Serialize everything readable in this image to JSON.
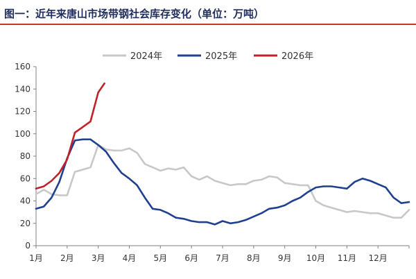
{
  "title": "图一：近年来唐山市场带钢社会库存变化（单位：万吨）",
  "chart_data": {
    "type": "line",
    "title": "图一：近年来唐山市场带钢社会库存变化（单位：万吨）",
    "xlabel": "",
    "ylabel": "",
    "ylim": [
      0,
      160
    ],
    "yticks": [
      0,
      20,
      40,
      60,
      80,
      100,
      120,
      140,
      160
    ],
    "xlim": [
      1,
      13
    ],
    "xticks": [
      "1月",
      "2月",
      "3月",
      "4月",
      "5月",
      "6月",
      "7月",
      "8月",
      "9月",
      "10月",
      "11月",
      "12月"
    ],
    "legend_position": "top",
    "series": [
      {
        "name": "2024年",
        "color": "#c8c8c8",
        "x": [
          1.0,
          1.25,
          1.5,
          1.75,
          2.0,
          2.25,
          2.5,
          2.75,
          3.0,
          3.25,
          3.5,
          3.75,
          4.0,
          4.25,
          4.5,
          4.75,
          5.0,
          5.25,
          5.5,
          5.75,
          6.0,
          6.25,
          6.5,
          6.75,
          7.0,
          7.25,
          7.5,
          7.75,
          8.0,
          8.25,
          8.5,
          8.75,
          9.0,
          9.25,
          9.5,
          9.75,
          10.0,
          10.25,
          10.5,
          10.75,
          11.0,
          11.25,
          11.5,
          11.75,
          12.0,
          12.25,
          12.5,
          12.75,
          13.0
        ],
        "values": [
          46,
          50,
          46,
          45,
          45,
          66,
          68,
          70,
          90,
          86,
          85,
          85,
          87,
          83,
          73,
          70,
          67,
          69,
          68,
          70,
          62,
          59,
          62,
          58,
          56,
          54,
          55,
          55,
          58,
          59,
          62,
          61,
          56,
          55,
          54,
          54,
          40,
          36,
          34,
          32,
          30,
          31,
          30,
          29,
          29,
          27,
          25,
          25,
          32
        ]
      },
      {
        "name": "2025年",
        "color": "#1f3f8f",
        "x": [
          1.0,
          1.25,
          1.5,
          1.75,
          2.0,
          2.25,
          2.5,
          2.75,
          3.0,
          3.25,
          3.5,
          3.75,
          4.0,
          4.25,
          4.5,
          4.75,
          5.0,
          5.25,
          5.5,
          5.75,
          6.0,
          6.25,
          6.5,
          6.75,
          7.0,
          7.25,
          7.5,
          7.75,
          8.0,
          8.25,
          8.5,
          8.75,
          9.0,
          9.25,
          9.5,
          9.75,
          10.0,
          10.25,
          10.5,
          10.75,
          11.0,
          11.25,
          11.5,
          11.75,
          12.0,
          12.25,
          12.5,
          12.75,
          13.0
        ],
        "values": [
          33,
          35,
          43,
          57,
          78,
          94,
          95,
          95,
          90,
          84,
          74,
          65,
          60,
          54,
          43,
          33,
          32,
          29,
          25,
          24,
          22,
          21,
          21,
          19,
          22,
          20,
          21,
          23,
          26,
          29,
          33,
          34,
          36,
          40,
          43,
          48,
          52,
          53,
          53,
          52,
          51,
          57,
          60,
          58,
          55,
          52,
          43,
          38,
          39
        ]
      },
      {
        "name": "2026年",
        "color": "#c0202a",
        "x": [
          1.0,
          1.25,
          1.5,
          1.75,
          2.0,
          2.25,
          2.5,
          2.75,
          3.0,
          3.2
        ],
        "values": [
          51,
          53,
          58,
          65,
          77,
          101,
          106,
          111,
          137,
          145
        ]
      }
    ]
  }
}
